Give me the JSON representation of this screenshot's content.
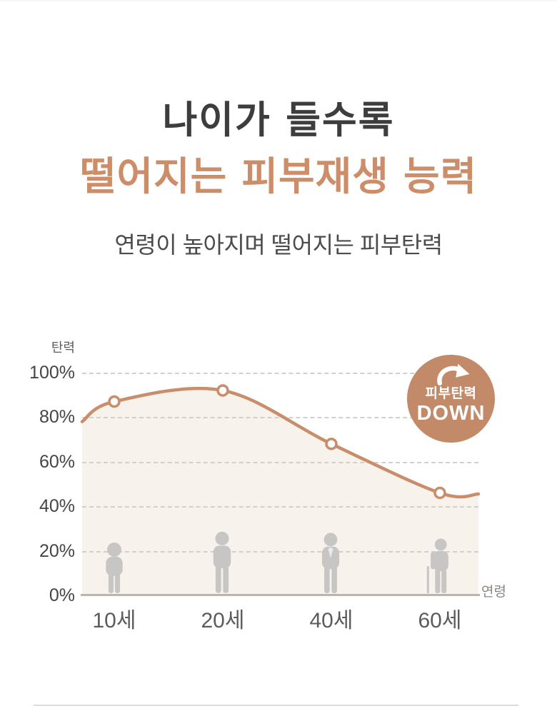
{
  "header": {
    "title_line1": "나이가 들수록",
    "title_line2": "떨어지는 피부재생 능력",
    "subtitle": "연령이 높아지며 떨어지는 피부탄력"
  },
  "chart_data": {
    "type": "line",
    "title": "연령이 높아지며 떨어지는 피부탄력",
    "ylabel": "탄력",
    "xlabel": "연령",
    "categories": [
      "10세",
      "20세",
      "40세",
      "60세"
    ],
    "values": [
      87,
      92,
      68,
      46
    ],
    "curve_endpoints": {
      "start_pct": 78,
      "end_pct": 45.5
    },
    "yticks": [
      "100%",
      "80%",
      "60%",
      "40%",
      "20%",
      "0%"
    ],
    "ylim": [
      0,
      100
    ],
    "grid": "horizontal-dashed",
    "legend": "none",
    "line_color": "#c88e6b",
    "area_color": "#f8f2ec",
    "point_style": "open-circle",
    "annotation": "피부탄력 DOWN"
  },
  "badge": {
    "line1": "피부탄력",
    "line2": "DOWN",
    "color": "#c28a69"
  },
  "figures": [
    "child-icon",
    "young-adult-icon",
    "suit-adult-icon",
    "elderly-cane-icon"
  ],
  "colors": {
    "accent": "#cd8d68",
    "title_text": "#3d3d3d",
    "subtitle_text": "#4b4b4b",
    "tick_text": "#454545",
    "figure_gray": "#c8c6c4"
  }
}
